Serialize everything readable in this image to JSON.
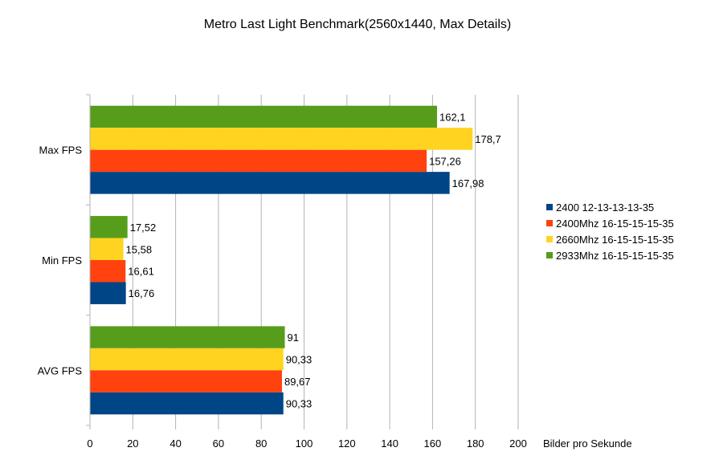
{
  "chart_data": {
    "type": "bar",
    "orientation": "horizontal",
    "title": "Metro Last Light Benchmark(2560x1440, Max Details)",
    "xlabel": "Bilder pro Sekunde",
    "ylabel": "",
    "xlim": [
      0,
      200
    ],
    "xticks": [
      "0",
      "20",
      "40",
      "60",
      "80",
      "100",
      "120",
      "140",
      "160",
      "180",
      "200"
    ],
    "grid": true,
    "legend_position": "right",
    "categories": [
      "Max FPS",
      "Min FPS",
      "AVG FPS"
    ],
    "series": [
      {
        "name": "2400 12-13-13-13-35",
        "color": "#004586",
        "values": [
          167.98,
          16.76,
          90.33
        ],
        "labels": [
          "167,98",
          "16,76",
          "90,33"
        ]
      },
      {
        "name": "2400Mhz 16-15-15-15-35",
        "color": "#ff420e",
        "values": [
          157.26,
          16.61,
          89.67
        ],
        "labels": [
          "157,26",
          "16,61",
          "89,67"
        ]
      },
      {
        "name": "2660Mhz 16-15-15-15-35",
        "color": "#ffd320",
        "values": [
          178.7,
          15.58,
          90.33
        ],
        "labels": [
          "178,7",
          "15,58",
          "90,33"
        ]
      },
      {
        "name": "2933Mhz 16-15-15-15-35",
        "color": "#579d1c",
        "values": [
          162.1,
          17.52,
          91
        ],
        "labels": [
          "162,1",
          "17,52",
          "91"
        ]
      }
    ]
  }
}
